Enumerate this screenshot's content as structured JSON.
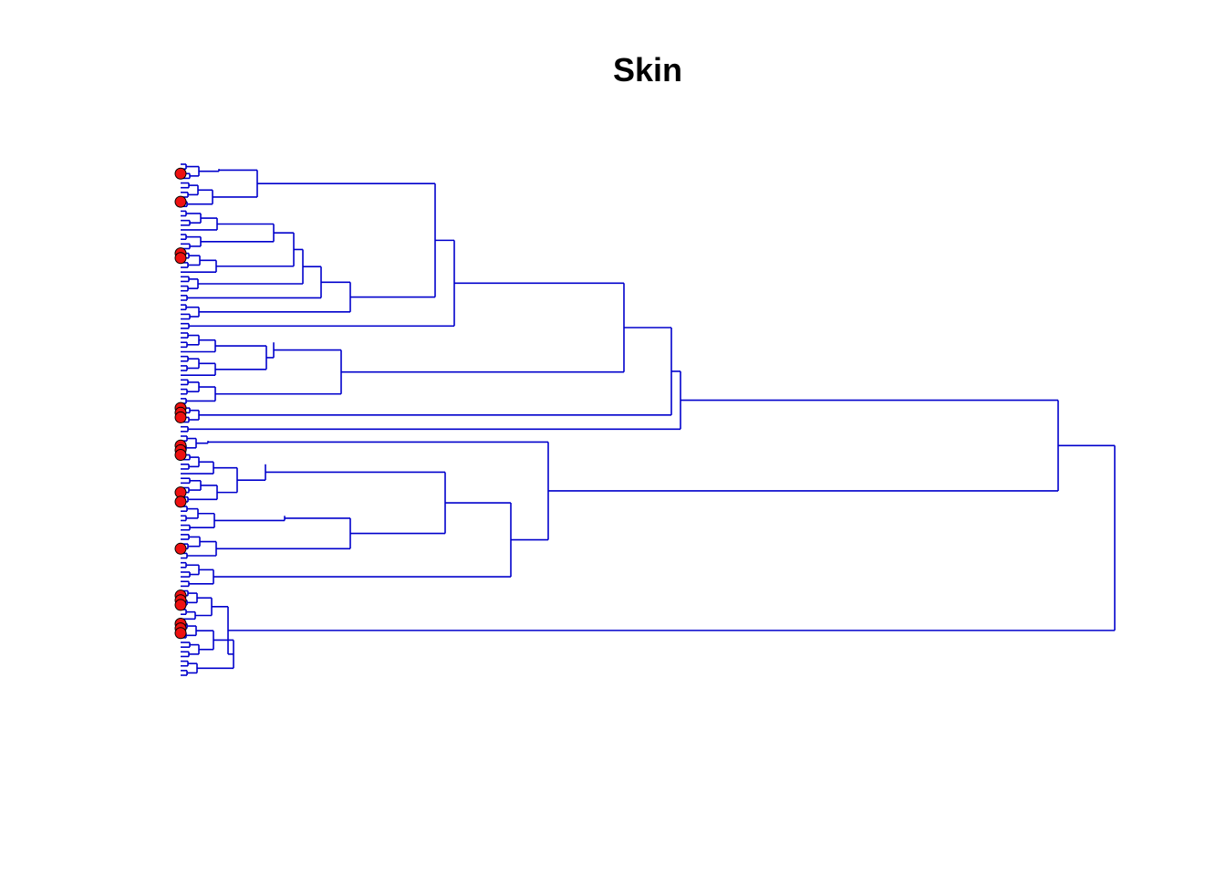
{
  "title": "Skin",
  "colors": {
    "branch": "#0000CC",
    "leaf_marker_fill": "#EE1111",
    "leaf_marker_stroke": "#000000"
  },
  "tree": {
    "orientation": "leaves-left",
    "leaf_count": 110,
    "marked_leaves": [
      2,
      8,
      19,
      20,
      52,
      53,
      54,
      60,
      61,
      62,
      70,
      72,
      82,
      92,
      93,
      94,
      98,
      99,
      100
    ]
  }
}
